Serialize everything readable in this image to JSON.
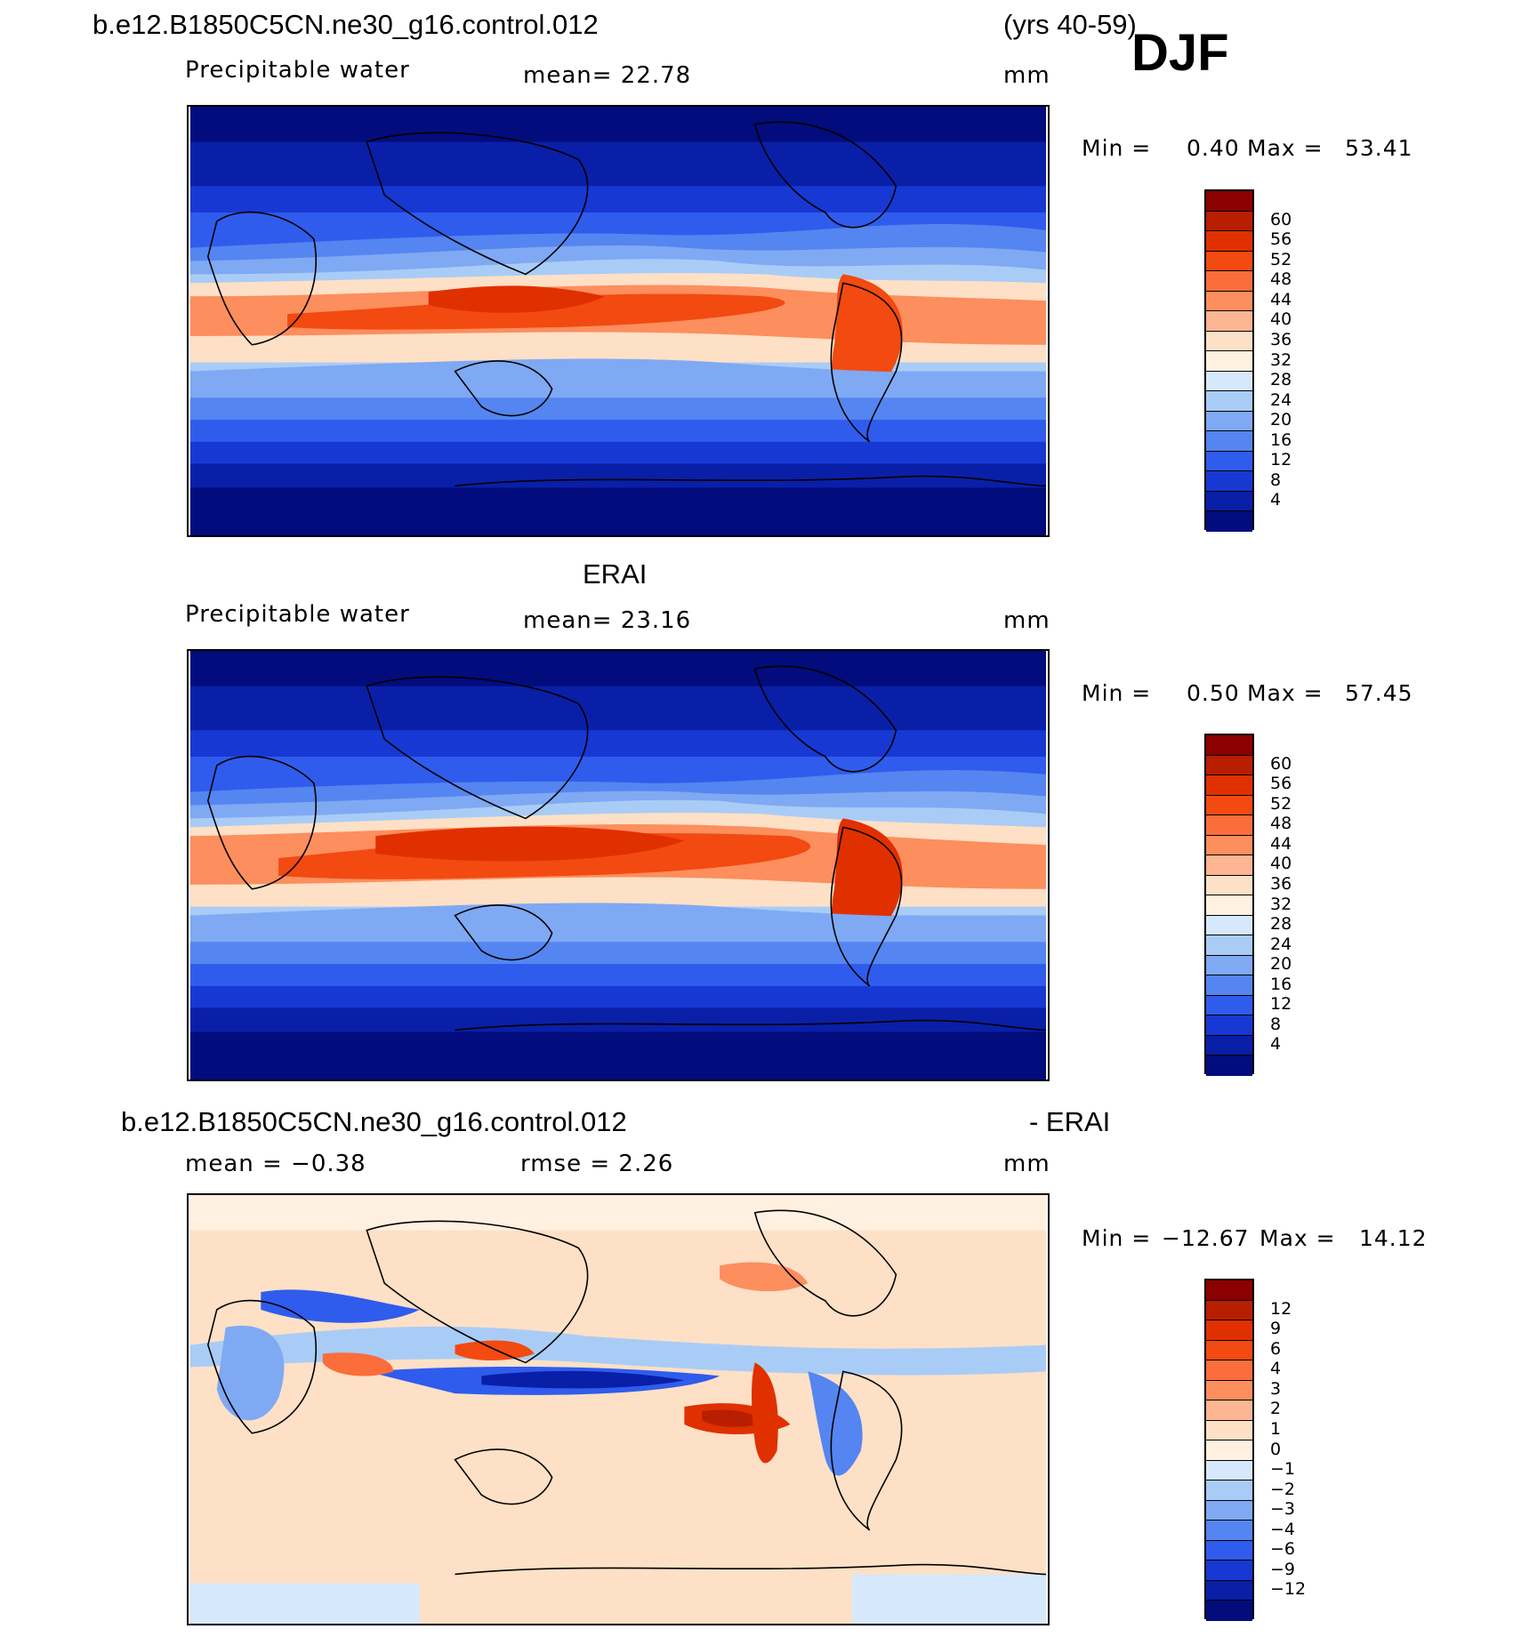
{
  "header": {
    "case_name": "b.e12.B1850C5CN.ne30_g16.control.012",
    "years": "(yrs 40-59)",
    "season": "DJF"
  },
  "panels": [
    {
      "title": "",
      "field": "Precipitable water",
      "stat": "mean=   22.78",
      "units": "mm",
      "min_label": "Min  =",
      "min_value": "0.40",
      "max_label": "Max  =",
      "max_value": "53.41"
    },
    {
      "title": "ERAI",
      "field": "Precipitable water",
      "stat": "mean=   23.16",
      "units": "mm",
      "min_label": "Min  =",
      "min_value": "0.50",
      "max_label": "Max  =",
      "max_value": "57.45"
    },
    {
      "title_left": "b.e12.B1850C5CN.ne30_g16.control.012",
      "title_right": "- ERAI",
      "field": "mean  =   −0.38",
      "stat": "rmse  =    2.26",
      "units": "mm",
      "min_label": "Min  =",
      "min_value": "−12.67",
      "max_label": "Max  =",
      "max_value": "14.12"
    }
  ],
  "colorbar_abs": {
    "labels": [
      "60",
      "56",
      "52",
      "48",
      "44",
      "40",
      "36",
      "32",
      "28",
      "24",
      "20",
      "16",
      "12",
      "8",
      "4"
    ],
    "colors": [
      "#8b0000",
      "#b81e00",
      "#e03000",
      "#f24a10",
      "#fb6d3a",
      "#fd8e5e",
      "#fdb592",
      "#fde0c6",
      "#fff0e0",
      "#d6e8fb",
      "#a9ccf7",
      "#7fa9f3",
      "#5585f0",
      "#2f5cec",
      "#1838d4",
      "#0a1fa8",
      "#020c7c"
    ]
  },
  "colorbar_diff": {
    "labels": [
      "12",
      "9",
      "6",
      "4",
      "3",
      "2",
      "1",
      "0",
      "−1",
      "−2",
      "−3",
      "−4",
      "−6",
      "−9",
      "−12"
    ],
    "colors": [
      "#8b0000",
      "#b81e00",
      "#e03000",
      "#f24a10",
      "#fb6d3a",
      "#fd8e5e",
      "#fdb592",
      "#fde0c6",
      "#fff0e0",
      "#d6e8fb",
      "#a9ccf7",
      "#7fa9f3",
      "#5585f0",
      "#2f5cec",
      "#1838d4",
      "#0a1fa8",
      "#020c7c"
    ]
  }
}
